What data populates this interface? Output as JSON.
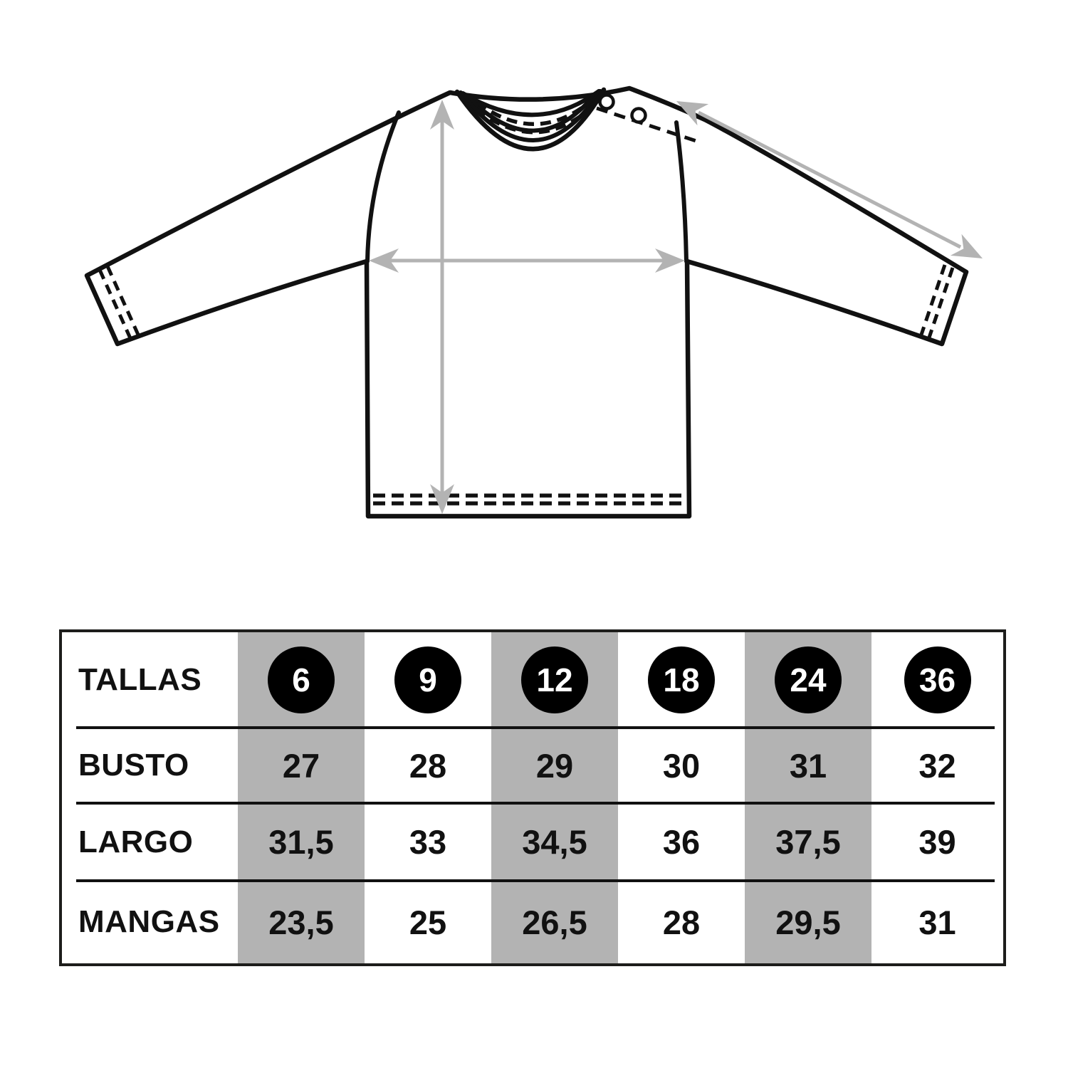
{
  "diagram": {
    "kind": "long-sleeve shirt flat technical sketch with measurement arrows"
  },
  "colors": {
    "ink": "#111111",
    "arrow_gray": "#b3b3b3",
    "column_stripe_gray": "#b3b3b3",
    "table_border": "#1d1d1b",
    "badge_black": "#000000",
    "badge_text": "#ffffff"
  },
  "table": {
    "header_label": "TALLAS",
    "sizes": [
      "6",
      "9",
      "12",
      "18",
      "24",
      "36"
    ],
    "rows": [
      {
        "label": "BUSTO",
        "values": [
          "27",
          "28",
          "29",
          "30",
          "31",
          "32"
        ]
      },
      {
        "label": "LARGO",
        "values": [
          "31,5",
          "33",
          "34,5",
          "36",
          "37,5",
          "39"
        ]
      },
      {
        "label": "MANGAS",
        "values": [
          "23,5",
          "25",
          "26,5",
          "28",
          "29,5",
          "31"
        ]
      }
    ],
    "highlighted_size_columns": [
      0,
      2,
      4
    ]
  },
  "chart_data": {
    "type": "table",
    "columns": [
      "TALLAS",
      "6",
      "9",
      "12",
      "18",
      "24",
      "36"
    ],
    "rows": [
      [
        "BUSTO",
        "27",
        "28",
        "29",
        "30",
        "31",
        "32"
      ],
      [
        "LARGO",
        "31,5",
        "33",
        "34,5",
        "36",
        "37,5",
        "39"
      ],
      [
        "MANGAS",
        "23,5",
        "25",
        "26,5",
        "28",
        "29,5",
        "31"
      ]
    ]
  }
}
